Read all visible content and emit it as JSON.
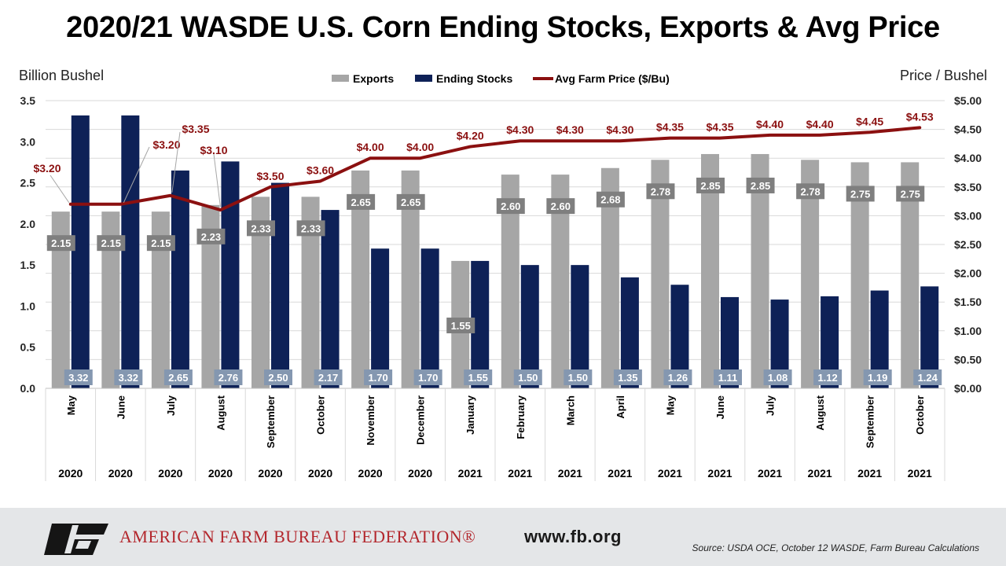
{
  "title": "2020/21 WASDE U.S. Corn Ending Stocks, Exports & Avg Price",
  "left_axis_label": "Billion Bushel",
  "right_axis_label": "Price / Bushel",
  "footer": {
    "org_name": "AMERICAN FARM BUREAU FEDERATION®",
    "website": "www.fb.org",
    "source": "Source: USDA OCE,  October 12 WASDE,  Farm Bureau Calculations"
  },
  "colors": {
    "exports": "#a6a6a6",
    "ending_stocks": "#0e2157",
    "price": "#8b1010",
    "label_box": "#7f7f7f",
    "stock_label_box": "#8497b0",
    "footer_bg": "#e4e6e8",
    "brand_red": "#b3272d"
  },
  "chart_data": {
    "type": "bar",
    "title": "2020/21 WASDE U.S. Corn Ending Stocks, Exports & Avg Price",
    "ylabel": "Billion Bushel",
    "y2label": "Price / Bushel",
    "ylim": [
      0,
      3.5
    ],
    "y_ticks": [
      "0.0",
      "0.5",
      "1.0",
      "1.5",
      "2.0",
      "2.5",
      "3.0",
      "3.5"
    ],
    "y2lim": [
      0,
      5
    ],
    "y2_ticks": [
      "$0.00",
      "$0.50",
      "$1.00",
      "$1.50",
      "$2.00",
      "$2.50",
      "$3.00",
      "$3.50",
      "$4.00",
      "$4.50",
      "$5.00"
    ],
    "grid": true,
    "legend_position": "top-center",
    "categories": [
      "May",
      "June",
      "July",
      "August",
      "September",
      "October",
      "November",
      "December",
      "January",
      "February",
      "March",
      "April",
      "May",
      "June",
      "July",
      "August",
      "September",
      "October"
    ],
    "years": [
      "2020",
      "2020",
      "2020",
      "2020",
      "2020",
      "2020",
      "2020",
      "2020",
      "2021",
      "2021",
      "2021",
      "2021",
      "2021",
      "2021",
      "2021",
      "2021",
      "2021",
      "2021"
    ],
    "series": [
      {
        "name": "Exports",
        "type": "bar",
        "axis": "left",
        "values": [
          2.15,
          2.15,
          2.15,
          2.23,
          2.33,
          2.33,
          2.65,
          2.65,
          1.55,
          2.6,
          2.6,
          2.68,
          2.78,
          2.85,
          2.85,
          2.78,
          2.75,
          2.75
        ],
        "labels": [
          "2.15",
          "2.15",
          "2.15",
          "2.23",
          "2.33",
          "2.33",
          "2.65",
          "2.65",
          "1.55",
          "2.60",
          "2.60",
          "2.68",
          "2.78",
          "2.85",
          "2.85",
          "2.78",
          "2.75",
          "2.75"
        ]
      },
      {
        "name": "Ending Stocks",
        "type": "bar",
        "axis": "left",
        "values": [
          3.32,
          3.32,
          2.65,
          2.76,
          2.5,
          2.17,
          1.7,
          1.7,
          1.55,
          1.5,
          1.5,
          1.35,
          1.26,
          1.11,
          1.08,
          1.12,
          1.19,
          1.24
        ],
        "labels": [
          "3.32",
          "3.32",
          "2.65",
          "2.76",
          "2.50",
          "2.17",
          "1.70",
          "1.70",
          "1.55",
          "1.50",
          "1.50",
          "1.35",
          "1.26",
          "1.11",
          "1.08",
          "1.12",
          "1.19",
          "1.24"
        ]
      },
      {
        "name": "Avg Farm Price ($/Bu)",
        "type": "line",
        "axis": "right",
        "values": [
          3.2,
          3.2,
          3.35,
          3.1,
          3.5,
          3.6,
          4.0,
          4.0,
          4.2,
          4.3,
          4.3,
          4.3,
          4.35,
          4.35,
          4.4,
          4.4,
          4.45,
          4.53
        ],
        "labels": [
          "$3.20",
          "$3.20",
          "$3.35",
          "$3.10",
          "$3.50",
          "$3.60",
          "$4.00",
          "$4.00",
          "$4.20",
          "$4.30",
          "$4.30",
          "$4.30",
          "$4.35",
          "$4.35",
          "$4.40",
          "$4.40",
          "$4.45",
          "$4.53"
        ]
      }
    ]
  }
}
